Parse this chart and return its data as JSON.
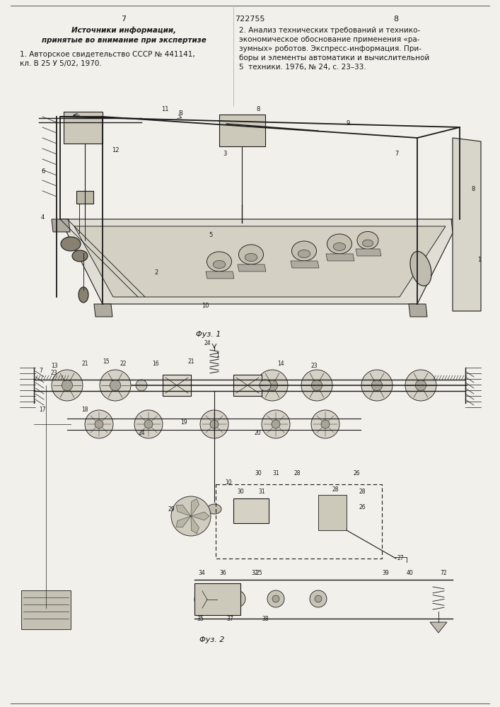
{
  "bg_color": "#f2f0eb",
  "text_color": "#1a1a1a",
  "page_left": "7",
  "patent_num": "722755",
  "page_right": "8",
  "left_col_title1": "Источники информации,",
  "left_col_title2": "принятые во внимание при экспертизе",
  "left_col_body1": "1. Авторское свидетельство СССР № 441141,",
  "left_col_body2": "кл. В 25 У 5/02, 1970.",
  "right_col_body": "2. Анализ технических требований и технико-",
  "right_col_body2": "экономическое обоснование применения «ра-",
  "right_col_body3": "зумных» роботов. Экспресс-информация. При-",
  "right_col_body4": "боры и элементы автоматики и вычислительной",
  "right_col_body5": "5  техники. 1976, № 24, с. 23–33.",
  "fig1_caption": "Φуз. 1",
  "fig2_caption": "Φуз. 2"
}
